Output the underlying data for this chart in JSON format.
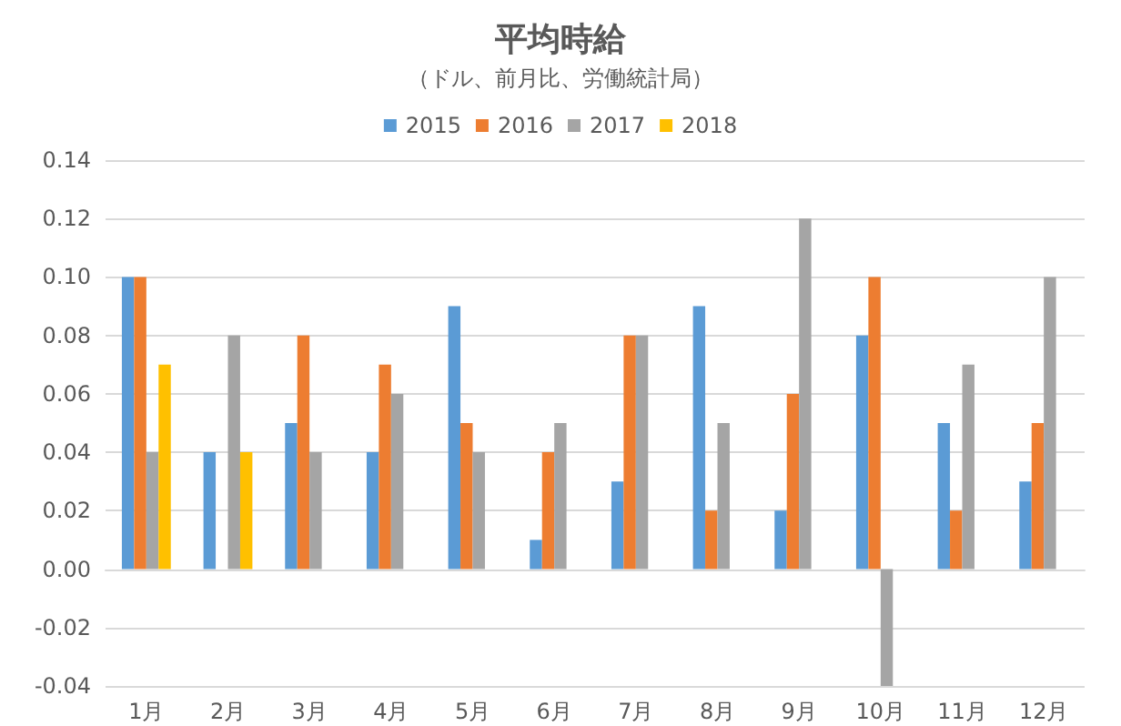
{
  "chart_data": {
    "type": "bar",
    "title": "平均時給",
    "subtitle": "（ドル、前月比、労働統計局）",
    "categories": [
      "1月",
      "2月",
      "3月",
      "4月",
      "5月",
      "6月",
      "7月",
      "8月",
      "9月",
      "10月",
      "11月",
      "12月"
    ],
    "series": [
      {
        "name": "2015",
        "color": "#5b9bd5",
        "values": [
          0.1,
          0.04,
          0.05,
          0.04,
          0.09,
          0.01,
          0.03,
          0.09,
          0.02,
          0.08,
          0.05,
          0.03
        ]
      },
      {
        "name": "2016",
        "color": "#ed7d31",
        "values": [
          0.1,
          0,
          0.08,
          0.07,
          0.05,
          0.04,
          0.08,
          0.02,
          0.06,
          0.1,
          0.02,
          0.05
        ]
      },
      {
        "name": "2017",
        "color": "#a5a5a5",
        "values": [
          0.04,
          0.08,
          0.04,
          0.06,
          0.04,
          0.05,
          0.08,
          0.05,
          0.12,
          -0.04,
          0.07,
          0.1
        ]
      },
      {
        "name": "2018",
        "color": "#ffc000",
        "values": [
          0.07,
          0.04,
          null,
          null,
          null,
          null,
          null,
          null,
          null,
          null,
          null,
          null
        ]
      }
    ],
    "ylim": [
      -0.04,
      0.14
    ],
    "yticks": [
      {
        "value": -0.04,
        "label": "-0.04"
      },
      {
        "value": -0.02,
        "label": "-0.02"
      },
      {
        "value": 0,
        "label": "0.00"
      },
      {
        "value": 0.02,
        "label": "0.02"
      },
      {
        "value": 0.04,
        "label": "0.04"
      },
      {
        "value": 0.06,
        "label": "0.06"
      },
      {
        "value": 0.08,
        "label": "0.08"
      },
      {
        "value": 0.1,
        "label": "0.10"
      },
      {
        "value": 0.12,
        "label": "0.12"
      },
      {
        "value": 0.14,
        "label": "0.14"
      }
    ],
    "grid": "y",
    "legend": "top"
  }
}
